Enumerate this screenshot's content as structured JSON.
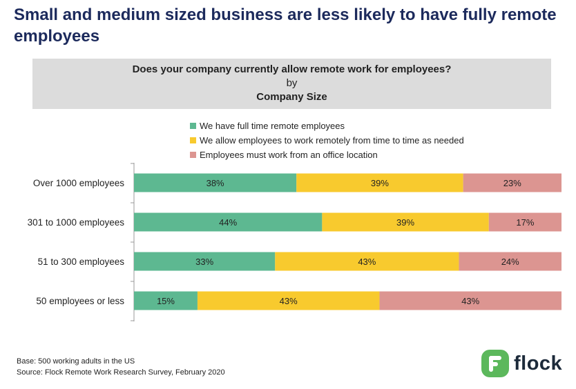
{
  "headline": "Small and medium sized business are less likely to have fully remote employees",
  "question": {
    "text": "Does your company currently allow remote work for employees?",
    "by": "by",
    "dimension": "Company Size"
  },
  "footnote": {
    "base": "Base: 500 working adults in the US",
    "source": "Source: Flock Remote Work Research Survey, February 2020"
  },
  "logo": {
    "text": "flock",
    "icon": "flock-logo-icon",
    "color": "#5cb85c"
  },
  "chart_data": {
    "type": "bar",
    "orientation": "horizontal",
    "stacked": true,
    "categories": [
      "Over 1000 employees",
      "301 to 1000 employees",
      "51 to 300 employees",
      "50 employees or less"
    ],
    "series": [
      {
        "name": "We have full time remote employees",
        "color": "#5db891",
        "values": [
          38,
          44,
          33,
          15
        ],
        "labels": [
          "38%",
          "44%",
          "33%",
          "15%"
        ]
      },
      {
        "name": "We allow employees to work remotely from time to time as needed",
        "color": "#f8ca2e",
        "values": [
          39,
          39,
          43,
          43
        ],
        "labels": [
          "39%",
          "39%",
          "43%",
          "43%"
        ]
      },
      {
        "name": "Employees must work from an office location",
        "color": "#dc9591",
        "values": [
          23,
          17,
          24,
          43
        ],
        "labels": [
          "23%",
          "17%",
          "24%",
          "43%"
        ]
      }
    ],
    "legend_position": "top",
    "grid": false
  }
}
